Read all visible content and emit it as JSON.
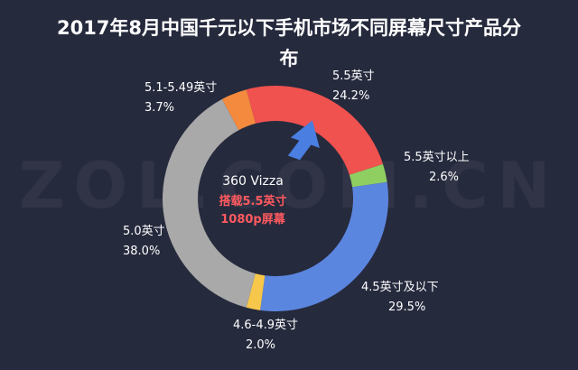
{
  "colors": {
    "background": "#262a3d",
    "arrow": "#4a7ee0",
    "highlight_text": "#ff5a5f"
  },
  "chart_data": {
    "type": "pie",
    "title": "2017年8月中国千元以下手机市场不同屏幕尺寸产品分布",
    "title_lines": [
      "2017年8月中国千元以下手机市场不同屏幕尺寸产品分",
      "布"
    ],
    "watermark": "ZOL.COM.CN",
    "series": [
      {
        "name": "5.5英寸",
        "value": 24.2,
        "label": "24.2%",
        "color": "#f0524f"
      },
      {
        "name": "5.5英寸以上",
        "value": 2.6,
        "label": "2.6%",
        "color": "#8fcf62"
      },
      {
        "name": "4.5英寸及以下",
        "value": 29.5,
        "label": "29.5%",
        "color": "#5b86e0"
      },
      {
        "name": "4.6-4.9英寸",
        "value": 2.0,
        "label": "2.0%",
        "color": "#f6c74a"
      },
      {
        "name": "5.0英寸",
        "value": 38.0,
        "label": "38.0%",
        "color": "#a9a9a9"
      },
      {
        "name": "5.1-5.49英寸",
        "value": 3.7,
        "label": "3.7%",
        "color": "#f38a3d"
      }
    ],
    "center": {
      "model": "360 Vizza",
      "note_lines": [
        "搭载5.5英寸",
        "1080p屏幕"
      ]
    },
    "legend": "none"
  }
}
